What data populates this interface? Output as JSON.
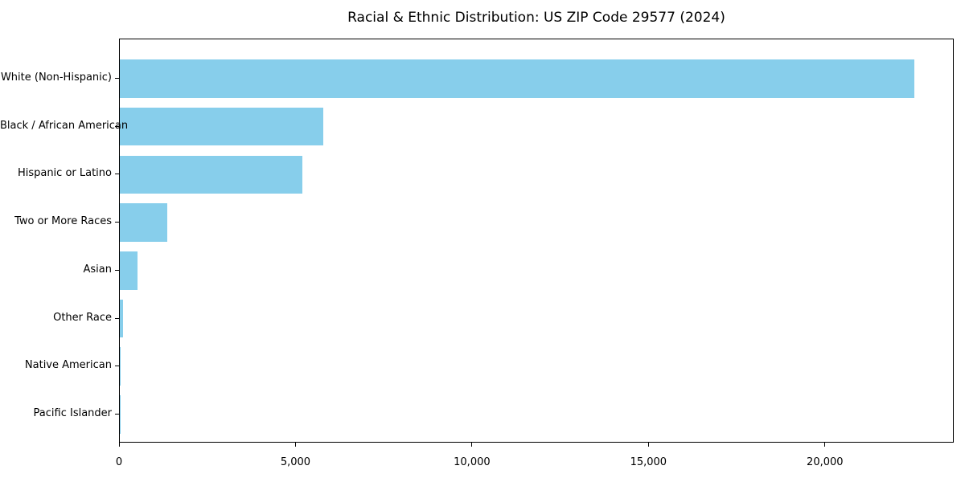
{
  "title": "Racial & Ethnic Distribution: US ZIP Code 29577 (2024)",
  "chart_data": {
    "type": "bar",
    "orientation": "horizontal",
    "title": "Racial & Ethnic Distribution: US ZIP Code 29577 (2024)",
    "categories": [
      "White (Non-Hispanic)",
      "Black / African American",
      "Hispanic or Latino",
      "Two or More Races",
      "Asian",
      "Other Race",
      "Native American",
      "Pacific Islander"
    ],
    "values": [
      22500,
      5760,
      5170,
      1340,
      500,
      90,
      30,
      10
    ],
    "xlabel": "",
    "ylabel": "",
    "xlim": [
      0,
      23650
    ],
    "x_ticks": [
      0,
      5000,
      10000,
      15000,
      20000
    ],
    "x_tick_labels": [
      "0",
      "5,000",
      "10,000",
      "15,000",
      "20,000"
    ],
    "bar_color": "#87CEEB",
    "axis_color": "#000000",
    "background_color": "#ffffff",
    "grid": false,
    "legend": null
  }
}
